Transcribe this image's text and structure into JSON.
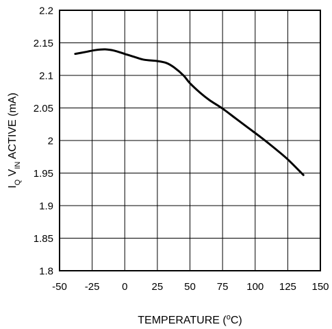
{
  "chart_data": {
    "type": "line",
    "xlabel": {
      "text": "TEMPERATURE (",
      "sup": "o",
      "after": "C)"
    },
    "ylabel": {
      "main1": "I",
      "sub1": "Q",
      "main2": " V",
      "sub2": "IN",
      "main3": " ACTIVE (mA)"
    },
    "xlim": [
      -50,
      150
    ],
    "ylim": [
      1.8,
      2.2
    ],
    "x_ticks": [
      -50,
      -25,
      0,
      25,
      50,
      75,
      100,
      125,
      150
    ],
    "x_tick_labels": [
      "-50",
      "-25",
      "0",
      "25",
      "50",
      "75",
      "100",
      "125",
      "150"
    ],
    "y_ticks": [
      1.8,
      1.85,
      1.9,
      1.95,
      2.0,
      2.05,
      2.1,
      2.15,
      2.2
    ],
    "y_tick_labels": [
      "1.8",
      "1.85",
      "1.9",
      "1.95",
      "2",
      "2.05",
      "2.1",
      "2.15",
      "2.2"
    ],
    "grid": true,
    "series": [
      {
        "x": [
          -38,
          -30,
          -22,
          -15,
          -8,
          0,
          8,
          15,
          25,
          32,
          38,
          45,
          50,
          58,
          65,
          75,
          85,
          95,
          105,
          115,
          125,
          137
        ],
        "y": [
          2.133,
          2.136,
          2.139,
          2.14,
          2.138,
          2.133,
          2.128,
          2.124,
          2.122,
          2.119,
          2.112,
          2.1,
          2.088,
          2.073,
          2.062,
          2.049,
          2.034,
          2.019,
          2.004,
          1.988,
          1.971,
          1.947
        ]
      }
    ]
  }
}
